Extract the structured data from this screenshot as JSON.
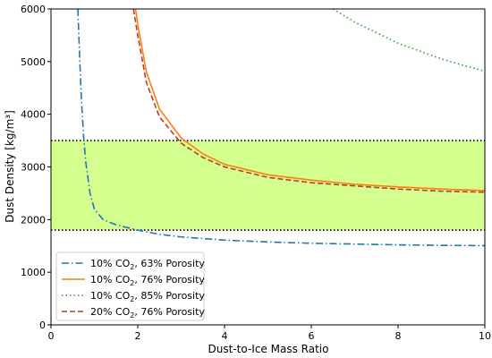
{
  "chart_data": {
    "type": "line",
    "title": "",
    "xlabel": "Dust-to-Ice Mass Ratio",
    "ylabel": "Dust Density [kg/m³]",
    "xlim": [
      0,
      10
    ],
    "ylim": [
      0,
      6000
    ],
    "xticks": [
      "0",
      "2",
      "4",
      "6",
      "8",
      "10"
    ],
    "yticks": [
      "0",
      "1000",
      "2000",
      "3000",
      "4000",
      "5000",
      "6000"
    ],
    "grid": false,
    "legend_position": "lower-left",
    "band": {
      "y_low": 1800,
      "y_high": 3500,
      "color": "#d4ff8f"
    },
    "series": [
      {
        "name": "10% CO2, 63% Porosity",
        "name_prefix": "10% CO",
        "name_subscript": "2",
        "name_suffix": ", 63% Porosity",
        "color": "#1f77b4",
        "style": "dashdot",
        "x": [
          0.62,
          0.65,
          0.7,
          0.75,
          0.8,
          0.9,
          1.0,
          1.2,
          1.5,
          2.0,
          2.5,
          3.0,
          4.0,
          5.0,
          6.0,
          7.0,
          8.0,
          9.0,
          10.0
        ],
        "y": [
          6000,
          5300,
          4300,
          3600,
          3100,
          2500,
          2200,
          2000,
          1900,
          1800,
          1720,
          1670,
          1610,
          1575,
          1550,
          1535,
          1520,
          1510,
          1505
        ]
      },
      {
        "name": "10% CO2, 76% Porosity",
        "name_prefix": "10% CO",
        "name_subscript": "2",
        "name_suffix": ", 76% Porosity",
        "color": "#ff7f0e",
        "style": "solid",
        "x": [
          1.95,
          2.0,
          2.2,
          2.5,
          3.0,
          3.5,
          4.0,
          5.0,
          6.0,
          7.0,
          8.0,
          9.0,
          10.0
        ],
        "y": [
          6000,
          5700,
          4800,
          4100,
          3550,
          3250,
          3050,
          2850,
          2750,
          2670,
          2620,
          2580,
          2550
        ]
      },
      {
        "name": "10% CO2, 85% Porosity",
        "name_prefix": "10% CO",
        "name_subscript": "2",
        "name_suffix": ", 85% Porosity",
        "color": "#2ca02c",
        "style": "dotted",
        "x": [
          6.5,
          7.0,
          7.5,
          8.0,
          8.5,
          9.0,
          9.5,
          10.0
        ],
        "y": [
          6000,
          5750,
          5550,
          5350,
          5200,
          5050,
          4930,
          4820
        ]
      },
      {
        "name": "20% CO2, 76% Porosity",
        "name_prefix": "20% CO",
        "name_subscript": "2",
        "name_suffix": ", 76% Porosity",
        "color": "#c0392b",
        "style": "dashed",
        "x": [
          1.9,
          2.0,
          2.2,
          2.5,
          3.0,
          3.5,
          4.0,
          5.0,
          6.0,
          7.0,
          8.0,
          9.0,
          10.0
        ],
        "y": [
          6000,
          5500,
          4600,
          3950,
          3450,
          3180,
          3000,
          2800,
          2700,
          2640,
          2580,
          2540,
          2520
        ]
      }
    ]
  }
}
